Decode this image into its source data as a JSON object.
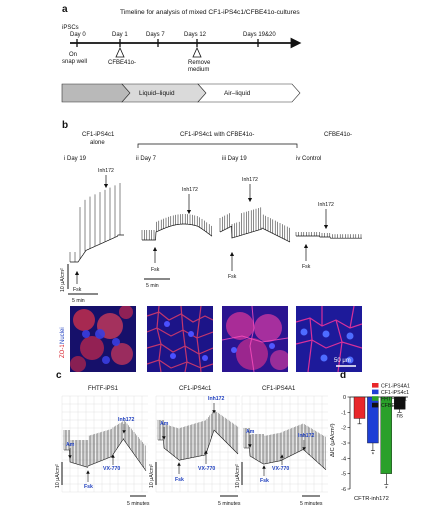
{
  "panel_a": {
    "letter": "a",
    "title": "Timeline for analysis of mixed CF1-iPS4c1/CFBE41o-cultures",
    "ipscs": "iPSCs",
    "days": [
      "Day 0",
      "Day 1",
      "Days 7",
      "Days 12",
      "Days 19&20"
    ],
    "day0_note_1": "On",
    "day0_note_2": "snap well",
    "day1_note": "CFBE41o-",
    "day12_note_1": "Remove",
    "day12_note_2": "medium",
    "phase_2": "Liquid–liquid",
    "phase_3": "Air–liquid"
  },
  "panel_b": {
    "letter": "b",
    "group_1": "CF1-iPS4c1",
    "group_1b": "alone",
    "group_2": "CF1-iPS4c1 with CFBE41o-",
    "group_3": "CFBE41o-",
    "sub_i": "i Day 19",
    "sub_ii": "ii Day 7",
    "sub_iii": "iii Day 19",
    "sub_iv": "iv Control",
    "inh": "Inh172",
    "fsk": "Fsk",
    "scale_y": "10 μA/cm²",
    "scale_x": "5 min",
    "micro_label_zo": "ZO-1",
    "micro_label_nuclei": "Nuclei",
    "micro_scale": "50 μm"
  },
  "panel_c": {
    "letter": "c",
    "titles": [
      "FHTF-iPS1",
      "CF1-iPS4c1",
      "CF1-iPS4A1"
    ],
    "am": "Am",
    "fsk": "Fsk",
    "vx": "VX-770",
    "inh": "Inh172",
    "scale_y": "10 μA/cm²",
    "scale_x": "5 minutes"
  },
  "panel_d": {
    "letter": "d",
    "chart_data": {
      "type": "bar",
      "categories": [
        "CF1-iPS4A1",
        "CF1-iPS4c1",
        "FHTF-iPS1",
        "CFBE41o-"
      ],
      "values": [
        -1.4,
        -3.0,
        -5.0,
        -0.8
      ],
      "errors": [
        0.35,
        0.5,
        0.7,
        0.2
      ],
      "colors": [
        "#e8272a",
        "#1e3fd6",
        "#2aa02a",
        "#111111"
      ],
      "significance": [
        "",
        "*",
        "*",
        "ns"
      ],
      "ylabel": "ΔIC (μA/cm²)",
      "xlabel": "CFTR-inh172",
      "ylim": [
        -6,
        0
      ],
      "yticks": [
        "0",
        "-1",
        "-2",
        "-3",
        "-4",
        "-5",
        "-6"
      ],
      "legend": [
        "CF1-iPS4A1",
        "CF1-iPS4c1",
        "FHTF-iPS1",
        "CFBE41o-"
      ],
      "legend_position": "top-right"
    }
  }
}
